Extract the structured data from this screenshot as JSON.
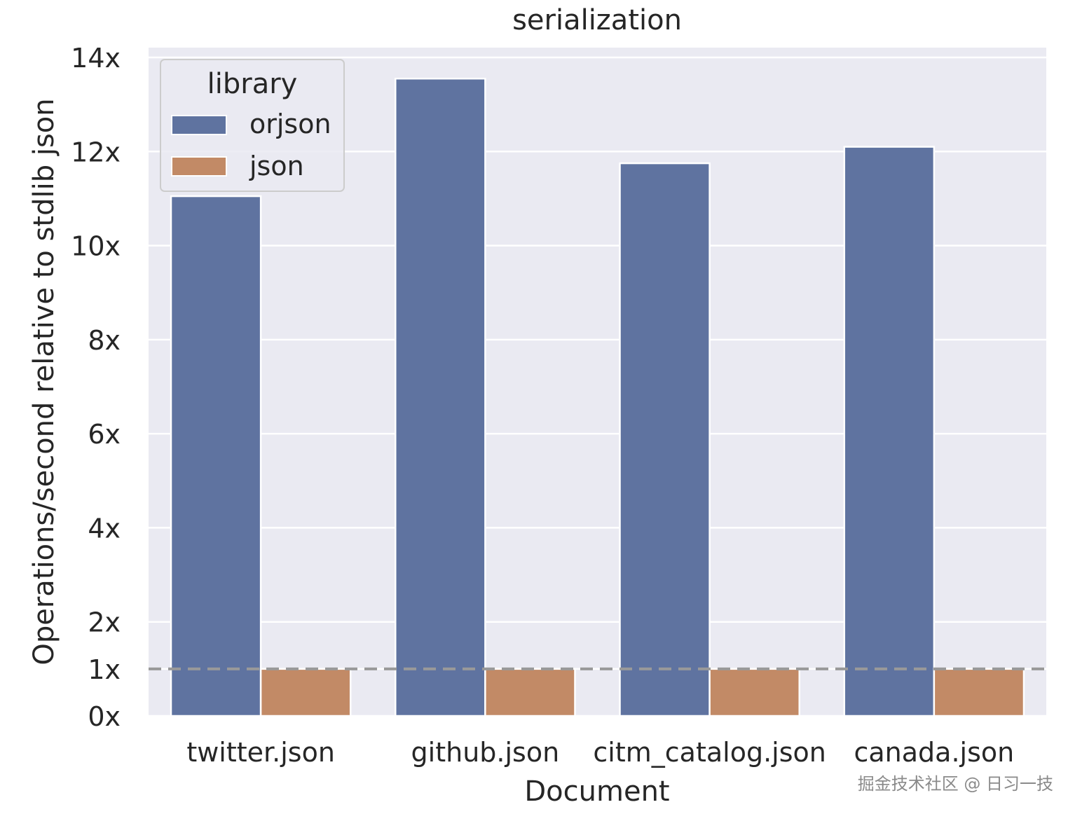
{
  "chart_data": {
    "type": "bar",
    "title": "serialization",
    "xlabel": "Document",
    "ylabel": "Operations/second relative to stdlib json",
    "categories": [
      "twitter.json",
      "github.json",
      "citm_catalog.json",
      "canada.json"
    ],
    "series": [
      {
        "name": "orjson",
        "values": [
          11.05,
          13.55,
          11.75,
          12.1
        ],
        "color": "#5f73a0"
      },
      {
        "name": "json",
        "values": [
          1.0,
          1.0,
          1.0,
          1.0
        ],
        "color": "#c28a66"
      }
    ],
    "ylim": [
      0,
      14
    ],
    "yticks": [
      0,
      1,
      2,
      4,
      6,
      8,
      10,
      12,
      14
    ],
    "ytick_labels": [
      "0x",
      "1x",
      "2x",
      "4x",
      "6x",
      "8x",
      "10x",
      "12x",
      "14x"
    ],
    "reference_line": {
      "y": 1,
      "style": "dashed",
      "color": "#999999"
    },
    "grid": true,
    "legend": {
      "title": "library",
      "placement": "top-left"
    },
    "background": "#eaeaf2"
  },
  "watermark": "掘金技术社区 @ 日习一技"
}
